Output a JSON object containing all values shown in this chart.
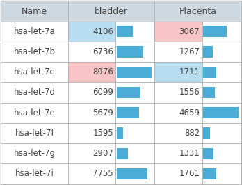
{
  "rows": [
    {
      "name": "hsa-let-7a",
      "bladder": 4106,
      "placenta": 3067,
      "bladder_bg": "#b8ddf0",
      "placenta_bg": "#f7c5c5"
    },
    {
      "name": "hsa-let-7b",
      "bladder": 6736,
      "placenta": 1267,
      "bladder_bg": null,
      "placenta_bg": null
    },
    {
      "name": "hsa-let-7c",
      "bladder": 8976,
      "placenta": 1711,
      "bladder_bg": "#f7c5c5",
      "placenta_bg": "#b8ddf0"
    },
    {
      "name": "hsa-let-7d",
      "bladder": 6099,
      "placenta": 1556,
      "bladder_bg": null,
      "placenta_bg": null
    },
    {
      "name": "hsa-let-7e",
      "bladder": 5679,
      "placenta": 4659,
      "bladder_bg": null,
      "placenta_bg": null
    },
    {
      "name": "hsa-let-7f",
      "bladder": 1595,
      "placenta": 882,
      "bladder_bg": null,
      "placenta_bg": null
    },
    {
      "name": "hsa-let-7g",
      "bladder": 2907,
      "placenta": 1331,
      "bladder_bg": null,
      "placenta_bg": null
    },
    {
      "name": "hsa-let-7i",
      "bladder": 7755,
      "placenta": 1761,
      "bladder_bg": null,
      "placenta_bg": null
    }
  ],
  "header": [
    "Name",
    "bladder",
    "Placenta"
  ],
  "header_bg": "#d0d8e0",
  "row_bg": "#ffffff",
  "bar_color": "#4badd6",
  "bar_max_bladder": 8976,
  "bar_max_placenta": 4659,
  "text_color": "#444444",
  "font_size": 8.5,
  "header_font_size": 9
}
